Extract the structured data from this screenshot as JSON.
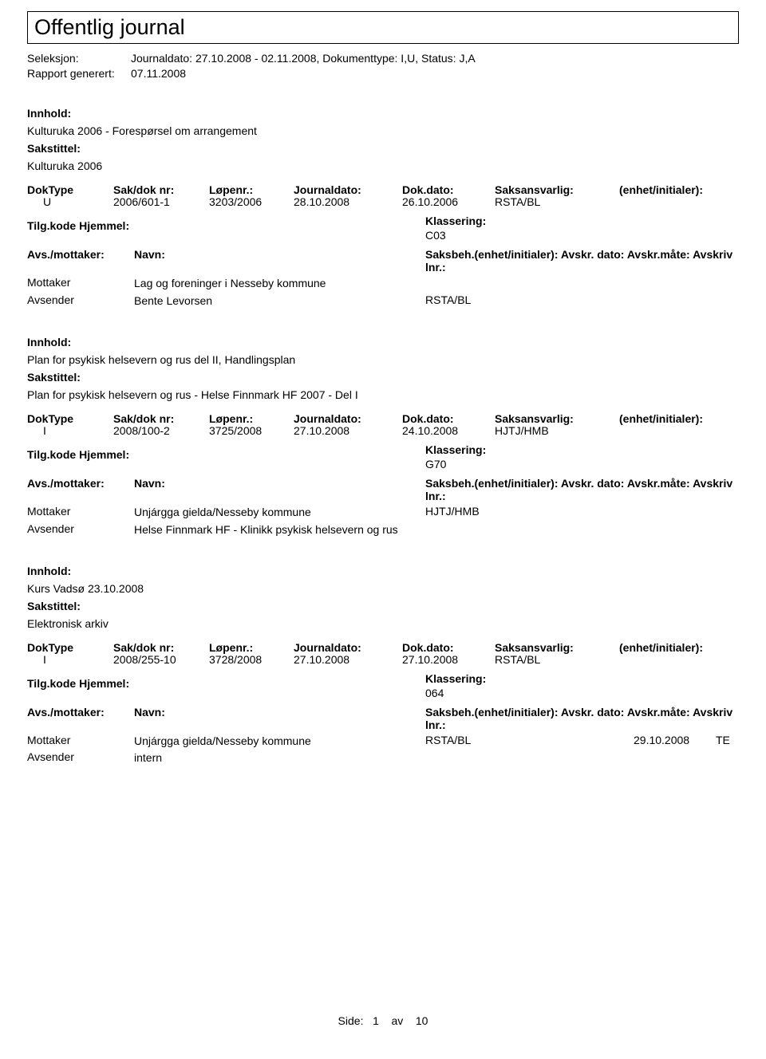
{
  "header": {
    "title": "Offentlig journal",
    "seleksjon_label": "Seleksjon:",
    "seleksjon_value": "Journaldato: 27.10.2008 - 02.11.2008, Dokumenttype: I,U, Status: J,A",
    "rapport_label": "Rapport generert:",
    "rapport_value": "07.11.2008"
  },
  "labels": {
    "innhold": "Innhold:",
    "sakstittel": "Sakstittel:",
    "doktype": "DokType",
    "sakdok": "Sak/dok nr:",
    "lopenr": "Løpenr.:",
    "journaldato": "Journaldato:",
    "dokdato": "Dok.dato:",
    "saksansvarlig": "Saksansvarlig:",
    "enhet": "(enhet/initialer):",
    "tilgkode": "Tilg.kode",
    "hjemmel": "Hjemmel:",
    "klassering": "Klassering:",
    "avsmottaker": "Avs./mottaker:",
    "navn": "Navn:",
    "saksbeh": "Saksbeh.(enhet/initialer):",
    "avskrdato": "Avskr. dato:",
    "avskrmate": "Avskr.måte:",
    "avskrivlnr": "Avskriv lnr.:"
  },
  "entries": [
    {
      "innhold": "Kulturuka 2006 - Forespørsel om arrangement",
      "sakstittel": "Kulturuka 2006",
      "doktype": "U",
      "sakdok": "2006/601-1",
      "lopenr": "3203/2006",
      "journaldato": "28.10.2008",
      "dokdato": "26.10.2006",
      "saksansvarlig": "RSTA/BL",
      "klassering": "C03",
      "parties": [
        {
          "role": "Mottaker",
          "navn": "Lag og foreninger i Nesseby kommune",
          "saksbeh": "",
          "dato": "",
          "mate": ""
        },
        {
          "role": "Avsender",
          "navn": "Bente Levorsen",
          "saksbeh": "RSTA/BL",
          "dato": "",
          "mate": ""
        }
      ]
    },
    {
      "innhold": "Plan for psykisk helsevern og rus del II, Handlingsplan",
      "sakstittel": "Plan for psykisk helsevern og rus - Helse Finnmark HF 2007 - Del I",
      "doktype": "I",
      "sakdok": "2008/100-2",
      "lopenr": "3725/2008",
      "journaldato": "27.10.2008",
      "dokdato": "24.10.2008",
      "saksansvarlig": "HJTJ/HMB",
      "klassering": "G70",
      "parties": [
        {
          "role": "Mottaker",
          "navn": "Unjárgga gielda/Nesseby kommune",
          "saksbeh": "HJTJ/HMB",
          "dato": "",
          "mate": ""
        },
        {
          "role": "Avsender",
          "navn": "Helse Finnmark HF - Klinikk psykisk helsevern og rus",
          "saksbeh": "",
          "dato": "",
          "mate": ""
        }
      ]
    },
    {
      "innhold": "Kurs Vadsø 23.10.2008",
      "sakstittel": "Elektronisk arkiv",
      "doktype": "I",
      "sakdok": "2008/255-10",
      "lopenr": "3728/2008",
      "journaldato": "27.10.2008",
      "dokdato": "27.10.2008",
      "saksansvarlig": "RSTA/BL",
      "klassering": "064",
      "parties": [
        {
          "role": "Mottaker",
          "navn": "Unjárgga gielda/Nesseby kommune",
          "saksbeh": "RSTA/BL",
          "dato": "29.10.2008",
          "mate": "TE"
        },
        {
          "role": "Avsender",
          "navn": "intern",
          "saksbeh": "",
          "dato": "",
          "mate": ""
        }
      ]
    }
  ],
  "footer": {
    "side": "Side:",
    "page": "1",
    "av": "av",
    "total": "10"
  }
}
